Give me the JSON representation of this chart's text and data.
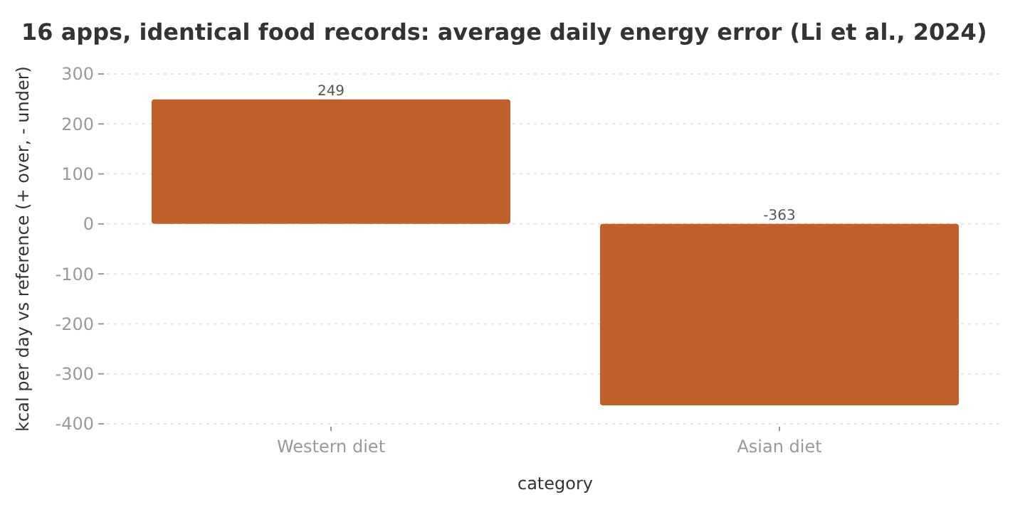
{
  "chart_data": {
    "type": "bar",
    "title": "16 apps, identical food records: average daily energy error (Li et al., 2024)",
    "xlabel": "category",
    "ylabel": "kcal per day vs reference (+ over, - under)",
    "categories": [
      "Western diet",
      "Asian diet"
    ],
    "values": [
      249,
      -363
    ],
    "color": "#c0602b",
    "ylim": [
      -400,
      300
    ],
    "yticks": [
      -400,
      -300,
      -200,
      -100,
      0,
      100,
      200,
      300
    ],
    "grid": "y",
    "data_labels": true
  }
}
